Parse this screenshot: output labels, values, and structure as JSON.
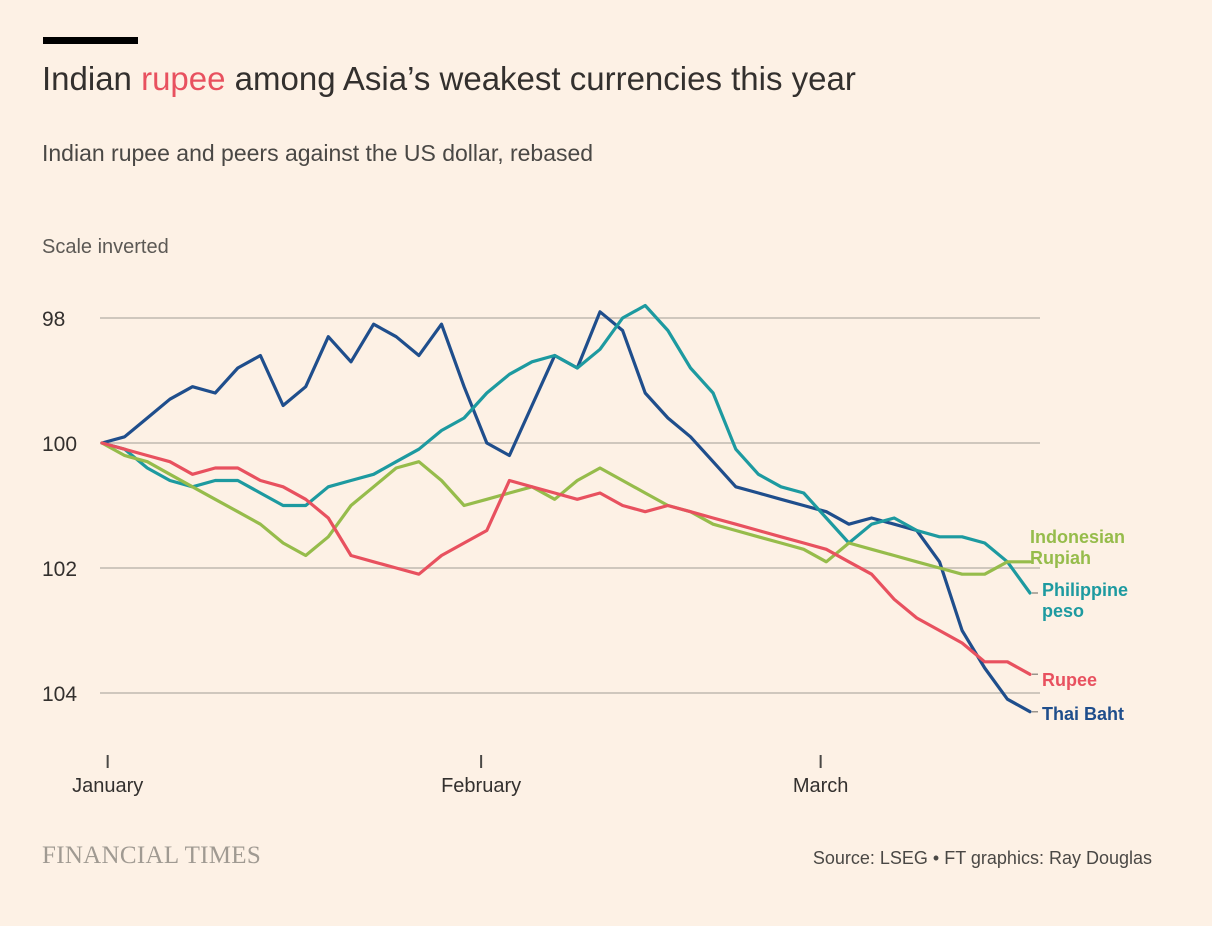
{
  "header": {
    "title_before": "Indian ",
    "title_highlight": "rupee",
    "title_after": " among Asia’s weakest currencies this year",
    "subtitle": "Indian rupee and peers against the US dollar, rebased",
    "scale_note": "Scale inverted"
  },
  "footer": {
    "brand": "FINANCIAL TIMES",
    "source": "Source: LSEG • FT graphics: Ray Douglas"
  },
  "chart_data": {
    "type": "line",
    "title": "Indian rupee among Asia’s weakest currencies this year",
    "subtitle": "Indian rupee and peers against the US dollar, rebased",
    "ylabel": "Scale inverted",
    "y_inverted": true,
    "ylim": [
      97.6,
      105
    ],
    "yticks": [
      98,
      100,
      102,
      104
    ],
    "ytick_labels": [
      "98",
      "100",
      "102",
      "104"
    ],
    "xlim": [
      0,
      82
    ],
    "x_ticks": [
      0.5,
      33.5,
      63.5
    ],
    "x_tick_labels": [
      "January",
      "February",
      "March"
    ],
    "grid": true,
    "series": [
      {
        "name": "Thai Baht",
        "label_lines": [
          "Thai Baht"
        ],
        "color": "#1f4e8c",
        "x": [
          0,
          2,
          4,
          6,
          8,
          10,
          12,
          14,
          16,
          18,
          20,
          22,
          24,
          26,
          28,
          30,
          32,
          34,
          36,
          38,
          40,
          42,
          44,
          46,
          48,
          50,
          52,
          54,
          56,
          58,
          60,
          62,
          64,
          66,
          68,
          70,
          72,
          74,
          76,
          78,
          80,
          82
        ],
        "values": [
          100.0,
          99.9,
          99.6,
          99.3,
          99.1,
          99.2,
          98.8,
          98.6,
          99.4,
          99.1,
          98.3,
          98.7,
          98.1,
          98.3,
          98.6,
          98.1,
          99.1,
          100.0,
          100.2,
          99.4,
          98.6,
          98.8,
          97.9,
          98.2,
          99.2,
          99.6,
          99.9,
          100.3,
          100.7,
          100.8,
          100.9,
          101.0,
          101.1,
          101.3,
          101.2,
          101.3,
          101.4,
          101.9,
          103.0,
          103.6,
          104.1,
          104.3
        ]
      },
      {
        "name": "Philippine peso",
        "label_lines": [
          "Philippine",
          "peso"
        ],
        "color": "#1d9aa0",
        "x": [
          0,
          2,
          4,
          6,
          8,
          10,
          12,
          14,
          16,
          18,
          20,
          22,
          24,
          26,
          28,
          30,
          32,
          34,
          36,
          38,
          40,
          42,
          44,
          46,
          48,
          50,
          52,
          54,
          56,
          58,
          60,
          62,
          64,
          66,
          68,
          70,
          72,
          74,
          76,
          78,
          80,
          82
        ],
        "values": [
          100.0,
          100.1,
          100.4,
          100.6,
          100.7,
          100.6,
          100.6,
          100.8,
          101.0,
          101.0,
          100.7,
          100.6,
          100.5,
          100.3,
          100.1,
          99.8,
          99.6,
          99.2,
          98.9,
          98.7,
          98.6,
          98.8,
          98.5,
          98.0,
          97.8,
          98.2,
          98.8,
          99.2,
          100.1,
          100.5,
          100.7,
          100.8,
          101.2,
          101.6,
          101.3,
          101.2,
          101.4,
          101.5,
          101.5,
          101.6,
          101.9,
          102.4
        ]
      },
      {
        "name": "Indonesian Rupiah",
        "label_lines": [
          "Indonesian",
          "Rupiah"
        ],
        "color": "#96bc4b",
        "x": [
          0,
          2,
          4,
          6,
          8,
          10,
          12,
          14,
          16,
          18,
          20,
          22,
          24,
          26,
          28,
          30,
          32,
          34,
          36,
          38,
          40,
          42,
          44,
          46,
          48,
          50,
          52,
          54,
          56,
          58,
          60,
          62,
          64,
          66,
          68,
          70,
          72,
          74,
          76,
          78,
          80,
          82
        ],
        "values": [
          100.0,
          100.2,
          100.3,
          100.5,
          100.7,
          100.9,
          101.1,
          101.3,
          101.6,
          101.8,
          101.5,
          101.0,
          100.7,
          100.4,
          100.3,
          100.6,
          101.0,
          100.9,
          100.8,
          100.7,
          100.9,
          100.6,
          100.4,
          100.6,
          100.8,
          101.0,
          101.1,
          101.3,
          101.4,
          101.5,
          101.6,
          101.7,
          101.9,
          101.6,
          101.7,
          101.8,
          101.9,
          102.0,
          102.1,
          102.1,
          101.9,
          101.9
        ]
      },
      {
        "name": "Rupee",
        "label_lines": [
          "Rupee"
        ],
        "color": "#e8515f",
        "x": [
          0,
          2,
          4,
          6,
          8,
          10,
          12,
          14,
          16,
          18,
          20,
          22,
          24,
          26,
          28,
          30,
          32,
          34,
          36,
          38,
          40,
          42,
          44,
          46,
          48,
          50,
          52,
          54,
          56,
          58,
          60,
          62,
          64,
          66,
          68,
          70,
          72,
          74,
          76,
          78,
          80,
          82
        ],
        "values": [
          100.0,
          100.1,
          100.2,
          100.3,
          100.5,
          100.4,
          100.4,
          100.6,
          100.7,
          100.9,
          101.2,
          101.8,
          101.9,
          102.0,
          102.1,
          101.8,
          101.6,
          101.4,
          100.6,
          100.7,
          100.8,
          100.9,
          100.8,
          101.0,
          101.1,
          101.0,
          101.1,
          101.2,
          101.3,
          101.4,
          101.5,
          101.6,
          101.7,
          101.9,
          102.1,
          102.5,
          102.8,
          103.0,
          103.2,
          103.5,
          103.5,
          103.7
        ]
      }
    ]
  }
}
